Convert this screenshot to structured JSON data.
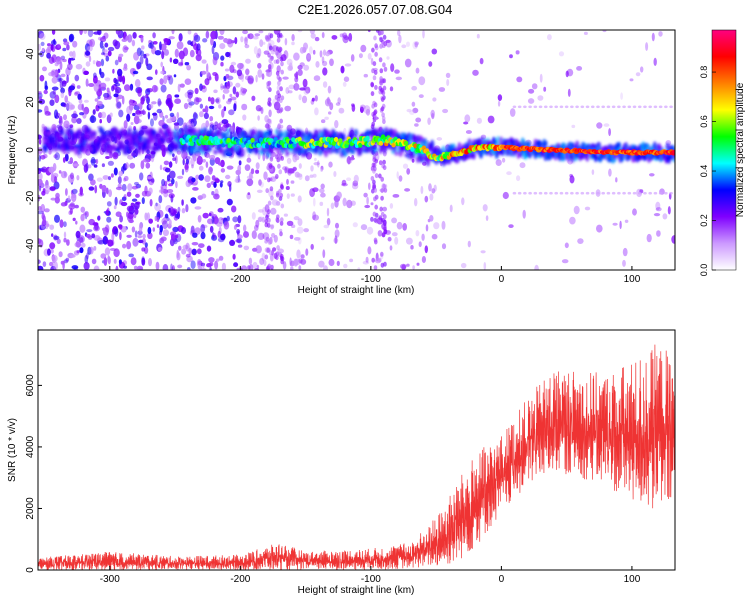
{
  "figure": {
    "title": "C2E1.2026.057.07.08.G04"
  },
  "chart_data": [
    {
      "type": "heatmap",
      "title": "C2E1.2026.057.07.08.G04",
      "xlabel": "Height of straight line (km)",
      "ylabel": "Frequency (Hz)",
      "xlim": [
        -355,
        133
      ],
      "ylim": [
        -50,
        50
      ],
      "xticks": [
        -300,
        -200,
        -100,
        0,
        100
      ],
      "yticks": [
        -40,
        -20,
        0,
        20,
        40
      ],
      "colorbar": {
        "label": "Normalized spectral amplitude",
        "range": [
          0.0,
          0.97
        ],
        "ticks": [
          0.0,
          0.2,
          0.4,
          0.6,
          0.8
        ],
        "colors": [
          "#ffffff",
          "#cc99ff",
          "#7f00ff",
          "#0000ff",
          "#00ffff",
          "#00ff00",
          "#ffff00",
          "#ff7f00",
          "#ff0000",
          "#ff0080"
        ]
      },
      "ridge": {
        "description_points": [
          {
            "x": -240,
            "y": 4
          },
          {
            "x": -200,
            "y": 3
          },
          {
            "x": -160,
            "y": 3
          },
          {
            "x": -120,
            "y": 3
          },
          {
            "x": -90,
            "y": 4
          },
          {
            "x": -70,
            "y": 2
          },
          {
            "x": -50,
            "y": -3
          },
          {
            "x": -30,
            "y": -1
          },
          {
            "x": -20,
            "y": 1
          },
          {
            "x": 0,
            "y": 1
          },
          {
            "x": 40,
            "y": 0
          },
          {
            "x": 80,
            "y": -1
          },
          {
            "x": 133,
            "y": -1
          }
        ]
      },
      "grid": false
    },
    {
      "type": "line",
      "xlabel": "Height of straight line (km)",
      "ylabel": "SNR (10 * v/v)",
      "xlim": [
        -355,
        133
      ],
      "ylim": [
        0,
        7800
      ],
      "xticks": [
        -300,
        -200,
        -100,
        0,
        100
      ],
      "yticks": [
        0,
        2000,
        4000,
        6000
      ],
      "line_color": "#ef3333",
      "envelope": [
        {
          "x": -355,
          "lo": 0,
          "hi": 400
        },
        {
          "x": -300,
          "lo": 0,
          "hi": 600
        },
        {
          "x": -250,
          "lo": 0,
          "hi": 450
        },
        {
          "x": -200,
          "lo": 0,
          "hi": 500
        },
        {
          "x": -170,
          "lo": 0,
          "hi": 900
        },
        {
          "x": -150,
          "lo": 0,
          "hi": 600
        },
        {
          "x": -100,
          "lo": 0,
          "hi": 700
        },
        {
          "x": -70,
          "lo": 50,
          "hi": 900
        },
        {
          "x": -55,
          "lo": 100,
          "hi": 1500
        },
        {
          "x": -45,
          "lo": 100,
          "hi": 2000
        },
        {
          "x": -35,
          "lo": 200,
          "hi": 2800
        },
        {
          "x": -20,
          "lo": 700,
          "hi": 3800
        },
        {
          "x": 0,
          "lo": 1800,
          "hi": 4400
        },
        {
          "x": 20,
          "lo": 2700,
          "hi": 5600
        },
        {
          "x": 40,
          "lo": 3200,
          "hi": 6600
        },
        {
          "x": 60,
          "lo": 3000,
          "hi": 6500
        },
        {
          "x": 80,
          "lo": 2700,
          "hi": 6400
        },
        {
          "x": 100,
          "lo": 2200,
          "hi": 6800
        },
        {
          "x": 120,
          "lo": 1800,
          "hi": 7400
        },
        {
          "x": 133,
          "lo": 2000,
          "hi": 7000
        }
      ],
      "grid": false
    }
  ]
}
